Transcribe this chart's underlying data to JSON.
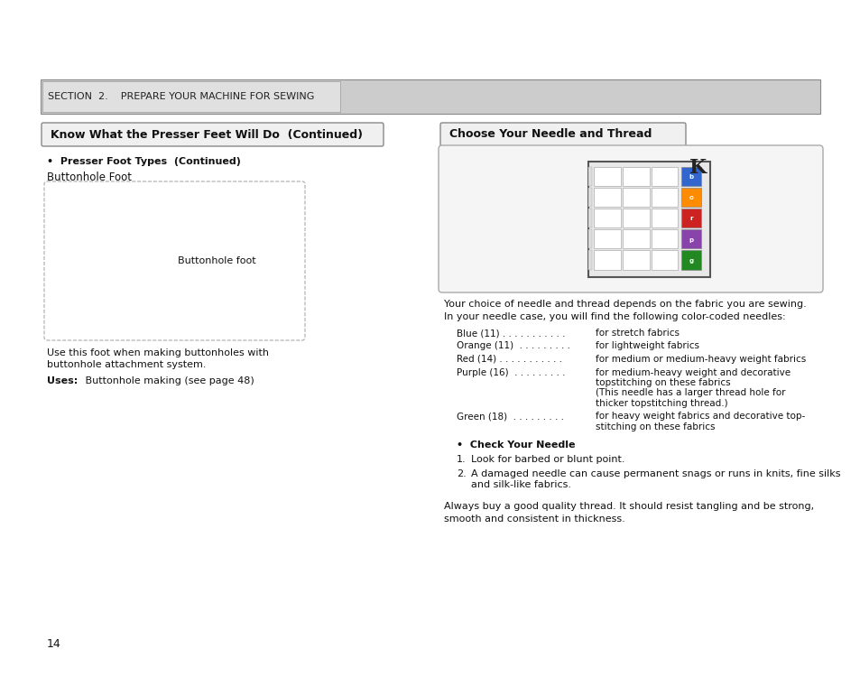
{
  "bg_color": "#ffffff",
  "section_header_text": "SECTION  2.    PREPARE YOUR MACHINE FOR SEWING",
  "left_title": "Know What the Presser Feet Will Do  (Continued)",
  "right_title": "Choose Your Needle and Thread",
  "bullet_subtitle": "•  Presser Foot Types  (Continued)",
  "foot_label": "Buttonhole Foot",
  "foot_caption": "Buttonhole foot",
  "foot_desc1": "Use this foot when making buttonholes with",
  "foot_desc2": "buttonhole attachment system.",
  "foot_uses_label": "Uses:",
  "foot_uses_text": "   Buttonhole making (see page 48)",
  "needle_intro1": "Your choice of needle and thread depends on the fabric you are sewing.",
  "needle_intro2": "In your needle case, you will find the following color-coded needles:",
  "needle_entries": [
    {
      "label": "Blue (11) . . . . . . . . . . .",
      "desc": "for stretch fabrics"
    },
    {
      "label": "Orange (11)  . . . . . . . . .",
      "desc": "for lightweight fabrics"
    },
    {
      "label": "Red (14) . . . . . . . . . . .",
      "desc": "for medium or medium-heavy weight fabrics"
    },
    {
      "label": "Purple (16)  . . . . . . . . .",
      "desc": "for medium-heavy weight and decorative\ntopstitching on these fabrics\n(This needle has a larger thread hole for\nthicker topstitching thread.)"
    },
    {
      "label": "Green (18)  . . . . . . . . .",
      "desc": "for heavy weight fabrics and decorative top-\nstitching on these fabrics"
    }
  ],
  "check_needle_title": "•  Check Your Needle",
  "check_items": [
    "Look for barbed or blunt point.",
    "A damaged needle can cause permanent snags or runs in knits, fine silks\nand silk-like fabrics."
  ],
  "footer_line1": "Always buy a good quality thread. It should resist tangling and be strong,",
  "footer_line2": "smooth and consistent in thickness.",
  "page_number": "14"
}
